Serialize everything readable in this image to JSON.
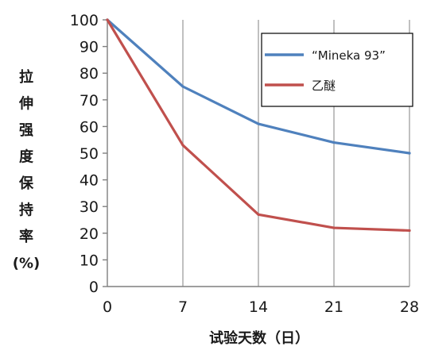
{
  "chart_data": {
    "type": "line",
    "title": "",
    "xlabel": "试验天数（日）",
    "ylabel": "拉伸强度保持率(%)",
    "ylabel_chars": [
      "拉",
      "伸",
      "强",
      "度",
      "保",
      "持",
      "率",
      "(%)"
    ],
    "x": [
      0,
      7,
      14,
      21,
      28
    ],
    "x_tick_labels": [
      "0",
      "7",
      "14",
      "21",
      "28"
    ],
    "y_tick_labels": [
      "0",
      "10",
      "20",
      "30",
      "40",
      "50",
      "60",
      "70",
      "80",
      "90",
      "100"
    ],
    "xlim": [
      0,
      28
    ],
    "ylim": [
      0,
      100
    ],
    "grid": "vertical",
    "legend_position": "top-right",
    "series": [
      {
        "name": "“Mineka 93”",
        "color": "#4f81bd",
        "values": [
          100,
          75,
          61,
          54,
          50
        ]
      },
      {
        "name": "乙醚",
        "color": "#c0504d",
        "values": [
          100,
          53,
          27,
          22,
          21
        ]
      }
    ]
  }
}
